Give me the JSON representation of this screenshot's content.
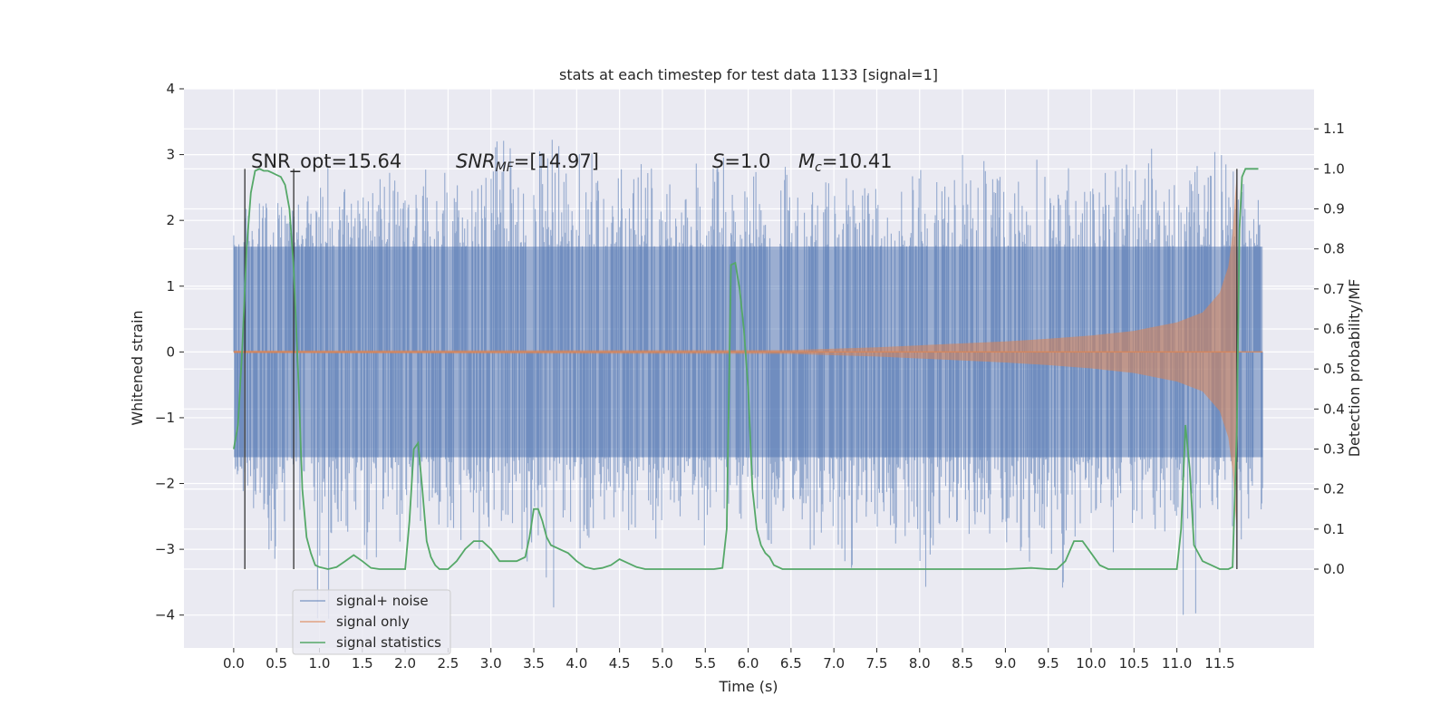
{
  "chart_data": {
    "type": "line",
    "title": "stats at each timestep for test data 1133 [signal=1]",
    "xlabel": "Time (s)",
    "ylabel": "Whitened strain",
    "y2label": "Detection probability/MF",
    "xlim": [
      -0.58,
      12.6
    ],
    "ylim": [
      -4.5,
      4.0
    ],
    "y2lim": [
      -0.197,
      1.2
    ],
    "grid": true,
    "legend_position": "lower-left",
    "x_ticks": [
      "0.0",
      "0.5",
      "1.0",
      "1.5",
      "2.0",
      "2.5",
      "3.0",
      "3.5",
      "4.0",
      "4.5",
      "5.0",
      "5.5",
      "6.0",
      "6.5",
      "7.0",
      "7.5",
      "8.0",
      "8.5",
      "9.0",
      "9.5",
      "10.0",
      "10.5",
      "11.0",
      "11.5"
    ],
    "y_ticks": [
      "4",
      "3",
      "2",
      "1",
      "0",
      "−1",
      "−2",
      "−3",
      "−4"
    ],
    "y2_ticks": [
      "1.1",
      "1.0",
      "0.9",
      "0.8",
      "0.7",
      "0.6",
      "0.5",
      "0.4",
      "0.3",
      "0.2",
      "0.1",
      "0.0"
    ],
    "annotations": {
      "snr_opt": "SNR_opt=15.64",
      "snr_mf": "SNR_MF=[14.97]",
      "snr_mf_prefix": "SNR",
      "snr_mf_sub": "MF",
      "snr_mf_value": "=[14.97]",
      "s_value": "S=1.0",
      "s_var": "S",
      "s_rest": "=1.0",
      "mc_value": "Mc=10.41",
      "mc_var": "M",
      "mc_sub": "c",
      "mc_rest": "=10.41"
    },
    "vertical_markers_x": [
      0.13,
      0.7,
      11.7
    ],
    "series": [
      {
        "name": "signal+ noise",
        "color": "#4c72b0",
        "t_range": [
          0.0,
          12.0
        ],
        "upper_envelope": [
          2.2,
          2.4,
          2.6,
          2.3,
          2.5,
          2.9,
          2.6,
          2.4,
          2.7,
          3.0,
          2.5,
          2.8,
          3.2,
          2.6,
          2.5,
          2.9,
          3.3,
          2.7,
          3.1,
          3.4,
          2.8,
          3.2,
          3.6,
          2.9,
          3.1,
          2.8,
          2.7,
          2.6,
          2.9,
          3.0,
          2.5,
          2.8,
          2.4,
          2.9,
          3.1,
          2.6,
          2.8,
          2.7,
          3.0,
          2.6,
          2.5,
          2.8,
          2.9,
          2.7,
          3.1,
          3.0,
          2.8,
          2.6,
          2.9,
          3.3,
          2.8,
          3.0,
          2.7,
          2.9,
          3.0,
          2.8,
          3.1,
          2.9,
          2.9,
          3.0,
          3.1,
          2.9,
          2.4
        ],
        "lower_envelope": [
          -2.3,
          -2.5,
          -3.2,
          -2.8,
          -2.6,
          -4.1,
          -3.0,
          -2.7,
          -3.2,
          -2.6,
          -2.9,
          -3.1,
          -2.8,
          -3.3,
          -2.5,
          -3.0,
          -2.7,
          -3.4,
          -2.9,
          -3.9,
          -2.6,
          -3.1,
          -2.8,
          -2.7,
          -2.9,
          -3.0,
          -2.6,
          -2.8,
          -3.0,
          -2.7,
          -3.4,
          -2.6,
          -3.0,
          -2.8,
          -2.9,
          -3.1,
          -2.7,
          -3.4,
          -2.6,
          -2.9,
          -3.0,
          -2.8,
          -3.6,
          -2.7,
          -3.1,
          -2.9,
          -2.8,
          -3.0,
          -3.2,
          -2.7,
          -3.6,
          -2.9,
          -2.8,
          -3.1,
          -3.0,
          -2.7,
          -2.9,
          -3.0,
          -4.1,
          -3.3,
          -2.8,
          -3.0,
          -2.6
        ],
        "band_upper": 1.6,
        "band_lower": -1.6
      },
      {
        "name": "signal only",
        "color": "#dd8452",
        "t_range": [
          0.0,
          12.0
        ],
        "envelope_t": [
          0.0,
          6.5,
          7.0,
          7.5,
          8.0,
          8.5,
          9.0,
          9.5,
          10.0,
          10.5,
          11.0,
          11.3,
          11.5,
          11.6,
          11.65,
          11.68,
          11.7,
          11.72,
          12.0
        ],
        "envelope_amp": [
          0.02,
          0.03,
          0.05,
          0.07,
          0.1,
          0.13,
          0.16,
          0.2,
          0.25,
          0.32,
          0.45,
          0.6,
          0.9,
          1.3,
          1.8,
          2.4,
          2.7,
          0.0,
          0.0
        ]
      },
      {
        "name": "signal statistics",
        "color": "#55a868",
        "axis": "right",
        "x": [
          0.0,
          0.05,
          0.1,
          0.15,
          0.2,
          0.25,
          0.3,
          0.35,
          0.4,
          0.45,
          0.5,
          0.55,
          0.6,
          0.65,
          0.7,
          0.75,
          0.8,
          0.85,
          0.9,
          0.95,
          1.0,
          1.1,
          1.2,
          1.3,
          1.4,
          1.5,
          1.6,
          1.7,
          1.8,
          1.9,
          2.0,
          2.05,
          2.1,
          2.15,
          2.2,
          2.25,
          2.3,
          2.35,
          2.4,
          2.5,
          2.6,
          2.7,
          2.8,
          2.9,
          3.0,
          3.1,
          3.2,
          3.3,
          3.4,
          3.45,
          3.5,
          3.55,
          3.6,
          3.65,
          3.7,
          3.8,
          3.9,
          4.0,
          4.1,
          4.2,
          4.3,
          4.4,
          4.5,
          4.6,
          4.7,
          4.8,
          5.0,
          5.2,
          5.4,
          5.6,
          5.7,
          5.75,
          5.8,
          5.85,
          5.9,
          5.95,
          6.0,
          6.05,
          6.1,
          6.15,
          6.2,
          6.25,
          6.3,
          6.4,
          6.5,
          6.6,
          6.7,
          6.8,
          7.0,
          7.3,
          7.5,
          8.0,
          8.5,
          9.0,
          9.3,
          9.5,
          9.6,
          9.7,
          9.8,
          9.9,
          10.0,
          10.1,
          10.2,
          10.5,
          10.9,
          11.0,
          11.05,
          11.1,
          11.15,
          11.2,
          11.3,
          11.4,
          11.5,
          11.55,
          11.6,
          11.65,
          11.7,
          11.73,
          11.76,
          11.8,
          11.85,
          11.9,
          11.95
        ],
        "y": [
          0.3,
          0.36,
          0.55,
          0.8,
          0.94,
          0.995,
          1.0,
          0.995,
          0.995,
          0.99,
          0.985,
          0.98,
          0.96,
          0.9,
          0.75,
          0.5,
          0.2,
          0.08,
          0.04,
          0.01,
          0.005,
          0.0,
          0.005,
          0.02,
          0.035,
          0.02,
          0.003,
          0.0,
          0.0,
          0.0,
          0.0,
          0.12,
          0.3,
          0.315,
          0.2,
          0.07,
          0.03,
          0.01,
          0.0,
          0.0,
          0.02,
          0.05,
          0.07,
          0.07,
          0.05,
          0.02,
          0.02,
          0.02,
          0.03,
          0.08,
          0.15,
          0.15,
          0.12,
          0.08,
          0.06,
          0.05,
          0.04,
          0.02,
          0.005,
          0.0,
          0.003,
          0.01,
          0.025,
          0.015,
          0.005,
          0.0,
          0.0,
          0.0,
          0.0,
          0.0,
          0.003,
          0.1,
          0.76,
          0.765,
          0.7,
          0.6,
          0.45,
          0.2,
          0.1,
          0.06,
          0.04,
          0.03,
          0.01,
          0.0,
          0.0,
          0.0,
          0.0,
          0.0,
          0.0,
          0.0,
          0.0,
          0.0,
          0.0,
          0.0,
          0.003,
          0.0,
          0.0,
          0.02,
          0.07,
          0.07,
          0.04,
          0.01,
          0.0,
          0.0,
          0.0,
          0.0,
          0.1,
          0.36,
          0.25,
          0.06,
          0.02,
          0.01,
          0.0,
          0.0,
          0.0,
          0.005,
          0.35,
          0.85,
          0.98,
          1.0,
          1.0,
          1.0,
          1.0
        ]
      }
    ]
  }
}
